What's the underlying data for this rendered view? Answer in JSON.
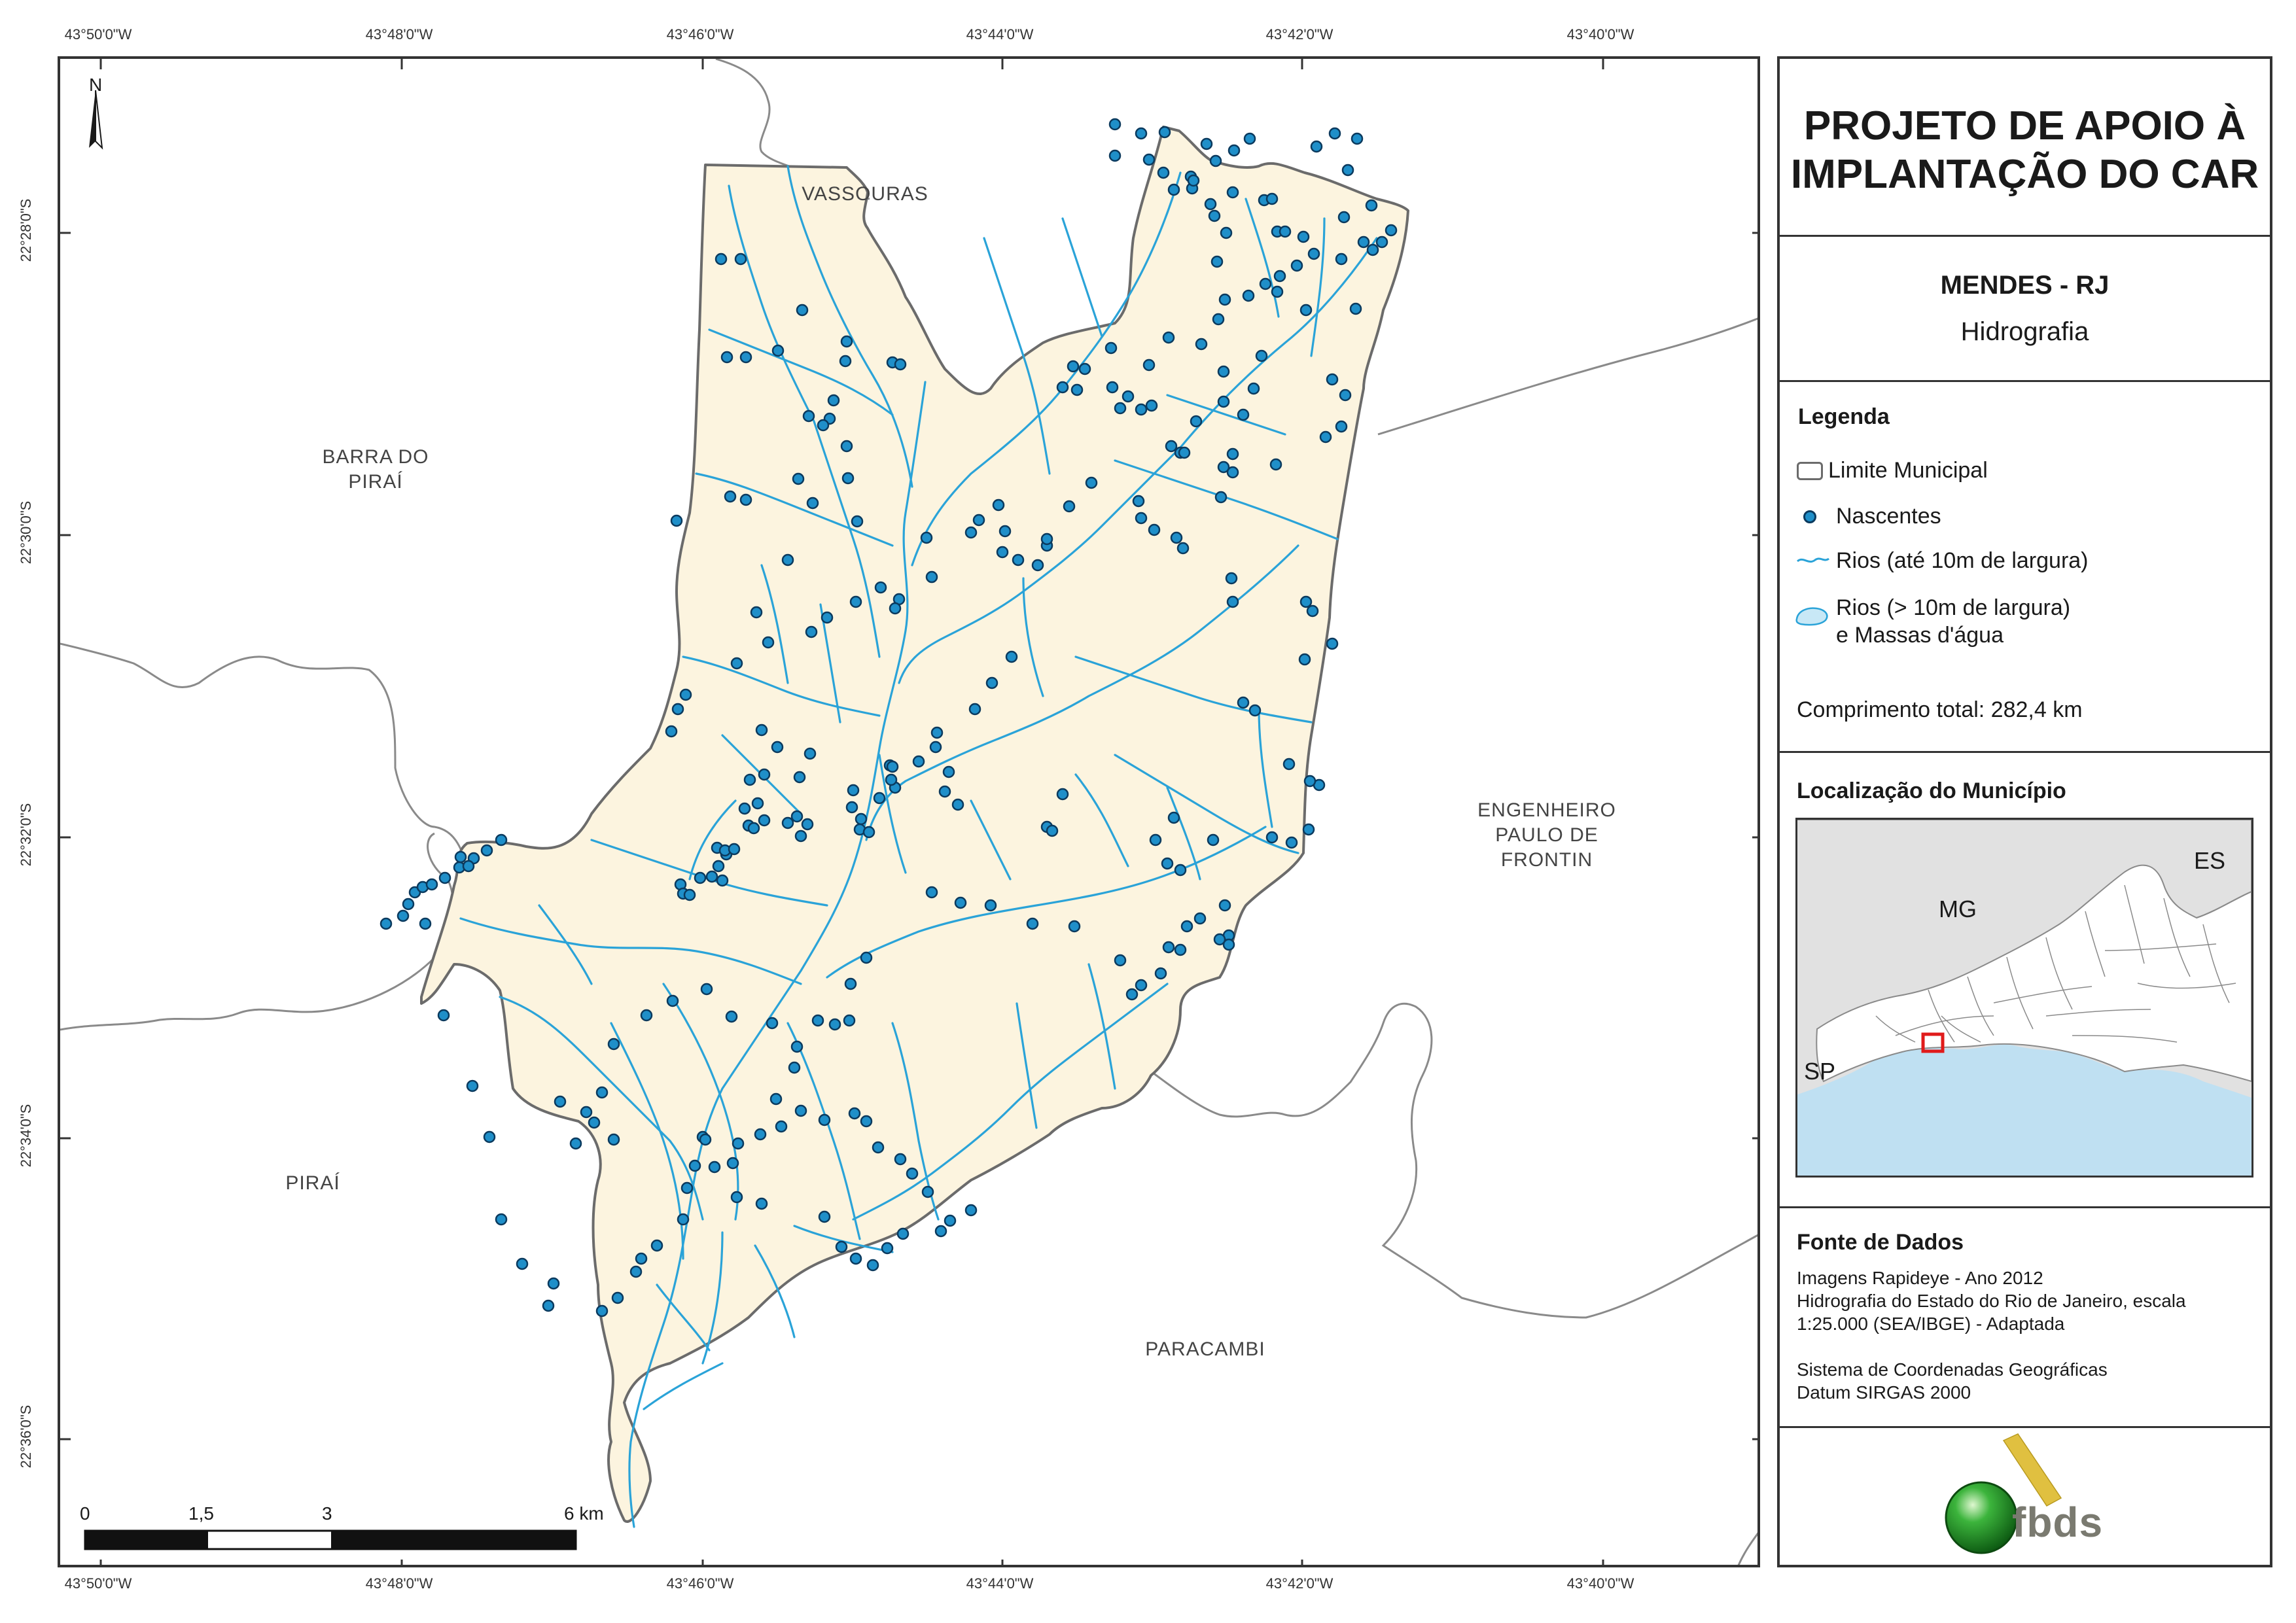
{
  "page": {
    "background": "#ffffff"
  },
  "coords": {
    "top_lon": [
      "43°50'0\"W",
      "43°48'0\"W",
      "43°46'0\"W",
      "43°44'0\"W",
      "43°42'0\"W",
      "43°40'0\"W"
    ],
    "bottom_lon": [
      "43°50'0\"W",
      "43°48'0\"W",
      "43°46'0\"W",
      "43°44'0\"W",
      "43°42'0\"W",
      "43°40'0\"W"
    ],
    "left_lat": [
      "22°28'0\"S",
      "22°30'0\"S",
      "22°32'0\"S",
      "22°34'0\"S",
      "22°36'0\"S"
    ]
  },
  "map": {
    "north_label": "N",
    "regions": {
      "vassouras": "VASSOURAS",
      "barra_1": "BARRA DO",
      "barra_2": "PIRAÍ",
      "engenheiro_1": "ENGENHEIRO",
      "engenheiro_2": "PAULO DE",
      "engenheiro_3": "FRONTIN",
      "pirai": "PIRAÍ",
      "paracambi": "PARACAMBI"
    },
    "scale": {
      "labels": [
        "0",
        "1,5",
        "3",
        "6 km"
      ]
    },
    "colors": {
      "municipality_fill": "#fcf4df",
      "boundary": "#6b6b6b",
      "river": "#2aa3d8",
      "spring_fill": "#1f8fc9",
      "spring_stroke": "#0b3a5e"
    }
  },
  "panel": {
    "title_line1": "PROJETO DE APOIO À",
    "title_line2": "IMPLANTAÇÃO DO CAR",
    "municipality": "MENDES - RJ",
    "theme": "Hidrografia",
    "legend": {
      "heading": "Legenda",
      "boundary": "Limite Municipal",
      "springs": "Nascentes",
      "rivers_small": "Rios (até 10m de largura)",
      "rivers_large_1": "Rios (> 10m de largura)",
      "rivers_large_2": "e Massas d'água",
      "total_length": "Comprimento total:  282,4 km"
    },
    "location": {
      "heading": "Localização do Município",
      "states": {
        "mg": "MG",
        "es": "ES",
        "sp": "SP"
      },
      "colors": {
        "other_states": "#e1e1e1",
        "rj_state": "#ffffff",
        "ocean": "#bfe0f2",
        "marker": "#e01b1b"
      }
    },
    "sources": {
      "heading": "Fonte de Dados",
      "lines": [
        "Imagens Rapideye - Ano 2012",
        "Hidrografia do Estado do Rio de Janeiro, escala",
        "1:25.000 (SEA/IBGE) - Adaptada",
        "",
        "Sistema de Coordenadas Geográficas",
        "Datum SIRGAS 2000"
      ]
    },
    "logo": {
      "text": "fbds",
      "colors": {
        "sphere": "#3cb43c",
        "bar": "#e0c040",
        "text": "#7a7a70"
      }
    }
  }
}
